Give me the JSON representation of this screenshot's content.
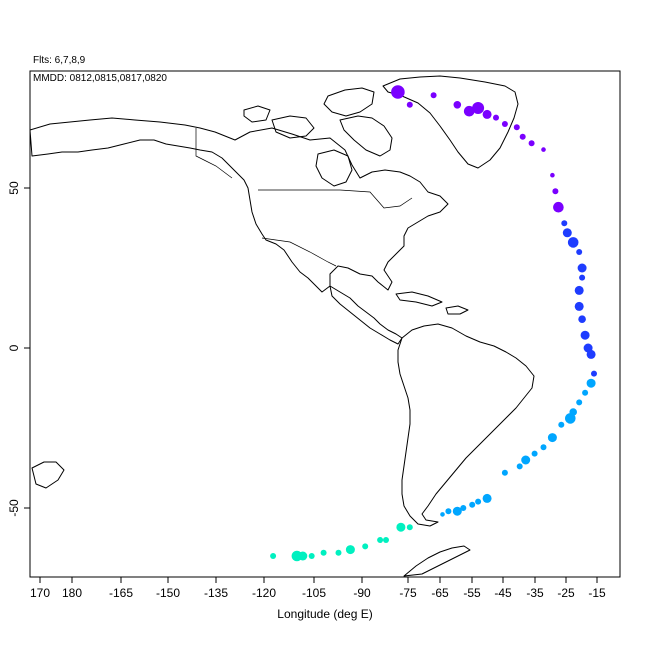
{
  "header": {
    "flights": "Flts: 6,7,8,9",
    "dates": "MMDD: 0812,0815,0817,0820"
  },
  "axes": {
    "xlabel": "Longitude (deg E)",
    "xticks": [
      "170",
      "180",
      "-165",
      "-150",
      "-135",
      "-120",
      "-105",
      "-90",
      "-75",
      "-65",
      "-55",
      "-45",
      "-35",
      "-25",
      "-15"
    ],
    "yticks": [
      "50",
      "0",
      "-50"
    ],
    "xlim": [
      165,
      -10
    ],
    "ylim": [
      -72,
      85
    ]
  },
  "chart_data": {
    "type": "scatter",
    "xlabel": "Longitude (deg E)",
    "ylabel": "",
    "xlim": [
      165,
      -10
    ],
    "ylim": [
      -72,
      85
    ],
    "series": [
      {
        "color": "#7a00ff",
        "points": [
          {
            "lon": -82,
            "lat": 80,
            "size": 9
          },
          {
            "lon": -78,
            "lat": 76,
            "size": 4
          },
          {
            "lon": -70,
            "lat": 79,
            "size": 4
          },
          {
            "lon": -62,
            "lat": 76,
            "size": 5
          },
          {
            "lon": -58,
            "lat": 74,
            "size": 7
          },
          {
            "lon": -55,
            "lat": 75,
            "size": 8
          },
          {
            "lon": -52,
            "lat": 73,
            "size": 6
          },
          {
            "lon": -49,
            "lat": 72,
            "size": 4
          },
          {
            "lon": -46,
            "lat": 70,
            "size": 4
          },
          {
            "lon": -42,
            "lat": 69,
            "size": 4
          },
          {
            "lon": -40,
            "lat": 66,
            "size": 4
          },
          {
            "lon": -37,
            "lat": 64,
            "size": 4
          },
          {
            "lon": -33,
            "lat": 62,
            "size": 3
          },
          {
            "lon": -30,
            "lat": 54,
            "size": 3
          },
          {
            "lon": -29,
            "lat": 49,
            "size": 4
          },
          {
            "lon": -28,
            "lat": 44,
            "size": 7
          }
        ]
      },
      {
        "color": "#1e3cff",
        "points": [
          {
            "lon": -26,
            "lat": 39,
            "size": 4
          },
          {
            "lon": -25,
            "lat": 36,
            "size": 6
          },
          {
            "lon": -23,
            "lat": 33,
            "size": 7
          },
          {
            "lon": -21,
            "lat": 30,
            "size": 4
          },
          {
            "lon": -20,
            "lat": 25,
            "size": 6
          },
          {
            "lon": -20,
            "lat": 22,
            "size": 4
          },
          {
            "lon": -21,
            "lat": 18,
            "size": 6
          },
          {
            "lon": -21,
            "lat": 13,
            "size": 6
          },
          {
            "lon": -20,
            "lat": 9,
            "size": 5
          },
          {
            "lon": -19,
            "lat": 4,
            "size": 6
          },
          {
            "lon": -18,
            "lat": 0,
            "size": 6
          },
          {
            "lon": -17,
            "lat": -2,
            "size": 6
          },
          {
            "lon": -16,
            "lat": -8,
            "size": 4
          }
        ]
      },
      {
        "color": "#00a6ff",
        "points": [
          {
            "lon": -17,
            "lat": -11,
            "size": 6
          },
          {
            "lon": -19,
            "lat": -14,
            "size": 4
          },
          {
            "lon": -21,
            "lat": -17,
            "size": 4
          },
          {
            "lon": -23,
            "lat": -20,
            "size": 5
          },
          {
            "lon": -24,
            "lat": -22,
            "size": 7
          },
          {
            "lon": -27,
            "lat": -24,
            "size": 4
          },
          {
            "lon": -30,
            "lat": -28,
            "size": 6
          },
          {
            "lon": -33,
            "lat": -31,
            "size": 4
          },
          {
            "lon": -36,
            "lat": -33,
            "size": 4
          },
          {
            "lon": -39,
            "lat": -35,
            "size": 6
          },
          {
            "lon": -41,
            "lat": -37,
            "size": 4
          },
          {
            "lon": -46,
            "lat": -39,
            "size": 4
          },
          {
            "lon": -52,
            "lat": -47,
            "size": 6
          },
          {
            "lon": -55,
            "lat": -48,
            "size": 4
          },
          {
            "lon": -57,
            "lat": -49,
            "size": 4
          },
          {
            "lon": -60,
            "lat": -50,
            "size": 4
          },
          {
            "lon": -62,
            "lat": -51,
            "size": 6
          },
          {
            "lon": -65,
            "lat": -51,
            "size": 4
          },
          {
            "lon": -67,
            "lat": -52,
            "size": 3
          }
        ]
      },
      {
        "color": "#00f0c0",
        "points": [
          {
            "lon": -78,
            "lat": -56,
            "size": 4
          },
          {
            "lon": -81,
            "lat": -56,
            "size": 6
          },
          {
            "lon": -86,
            "lat": -60,
            "size": 4
          },
          {
            "lon": -88,
            "lat": -60,
            "size": 4
          },
          {
            "lon": -93,
            "lat": -62,
            "size": 4
          },
          {
            "lon": -98,
            "lat": -63,
            "size": 6
          },
          {
            "lon": -102,
            "lat": -64,
            "size": 4
          },
          {
            "lon": -107,
            "lat": -64,
            "size": 4
          },
          {
            "lon": -111,
            "lat": -65,
            "size": 4
          },
          {
            "lon": -114,
            "lat": -65,
            "size": 6
          },
          {
            "lon": -116,
            "lat": -65,
            "size": 7
          },
          {
            "lon": -124,
            "lat": -65,
            "size": 4
          }
        ]
      }
    ]
  }
}
